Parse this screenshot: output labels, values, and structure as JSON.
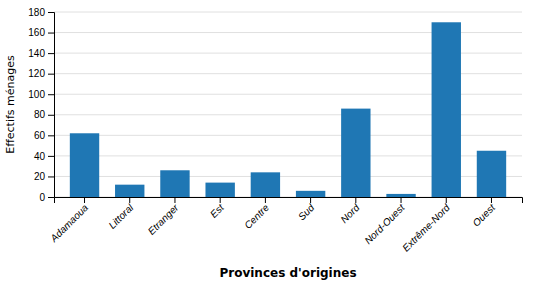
{
  "chart_data": {
    "type": "bar",
    "categories": [
      "Adamaoua",
      "Littoral",
      "Etranger",
      "Est",
      "Centre",
      "Sud",
      "Nord",
      "Nord-Ouest",
      "Extrême-Nord",
      "Ouest"
    ],
    "values": [
      62,
      12,
      26,
      14,
      24,
      6,
      86,
      3,
      170,
      45
    ],
    "xlabel": "Provinces d'origines",
    "ylabel": "Effectifs ménages",
    "ylim": [
      0,
      180
    ],
    "yticks": [
      0,
      20,
      40,
      60,
      80,
      100,
      120,
      140,
      160,
      180
    ],
    "grid": true
  }
}
